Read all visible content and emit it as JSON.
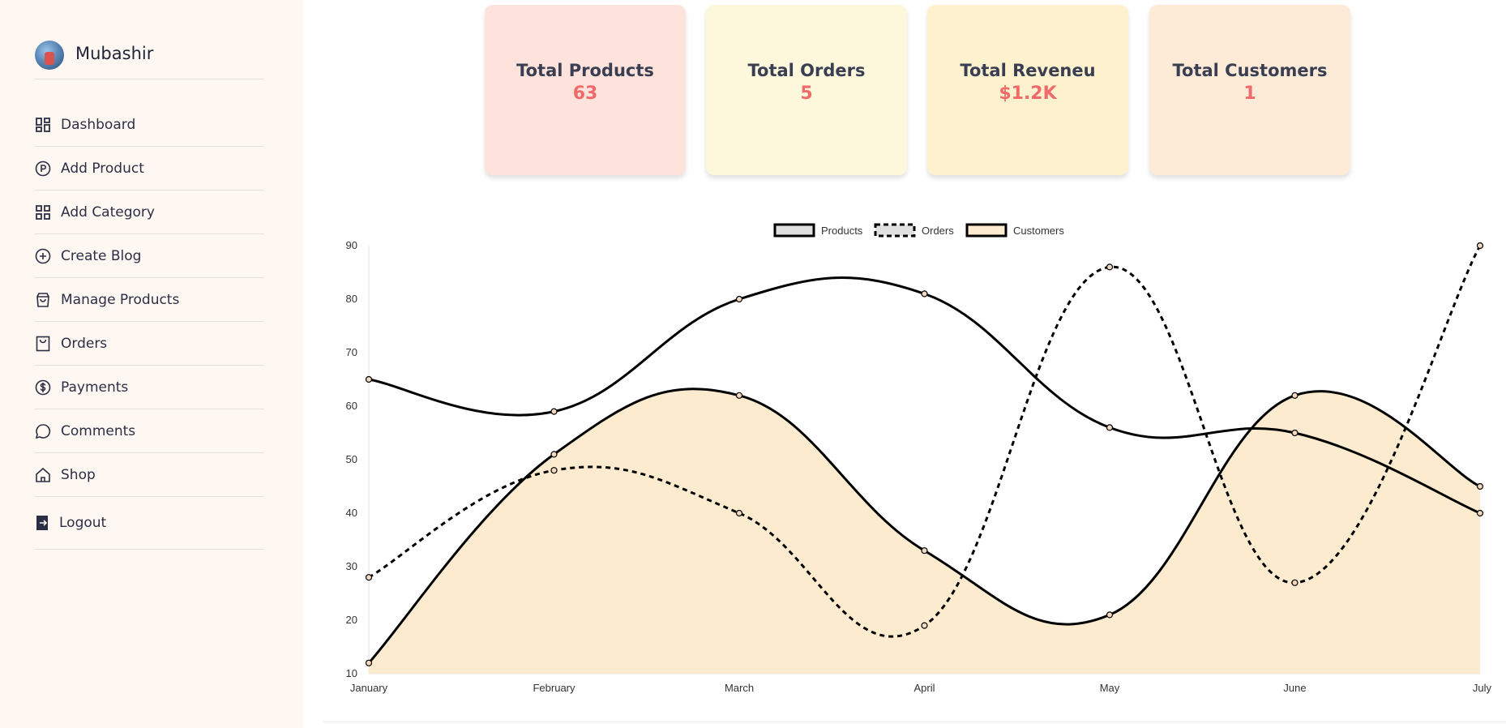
{
  "sidebar": {
    "user_name": "Mubashir",
    "items": [
      {
        "label": "Dashboard",
        "icon": "grid-icon"
      },
      {
        "label": "Add Product",
        "icon": "product-circle-icon"
      },
      {
        "label": "Add Category",
        "icon": "grid-icon"
      },
      {
        "label": "Create Blog",
        "icon": "plus-circle-icon"
      },
      {
        "label": "Manage Products",
        "icon": "bag-icon"
      },
      {
        "label": "Orders",
        "icon": "shopping-bag-icon"
      },
      {
        "label": "Payments",
        "icon": "dollar-circle-icon"
      },
      {
        "label": "Comments",
        "icon": "chat-bubble-icon"
      },
      {
        "label": "Shop",
        "icon": "home-icon"
      }
    ],
    "logout": {
      "label": "Logout",
      "icon": "logout-icon"
    }
  },
  "stats": [
    {
      "title": "Total Products",
      "value": "63",
      "bg": "#fde3dc"
    },
    {
      "title": "Total Orders",
      "value": "5",
      "bg": "#fdf8dc"
    },
    {
      "title": "Total Reveneu",
      "value": "$1.2K",
      "bg": "#fef1cd"
    },
    {
      "title": "Total Customers",
      "value": "1",
      "bg": "#fdebd7"
    }
  ],
  "colors": {
    "value_text": "#f06a6a",
    "customers_fill": "#fdebd0",
    "products_legend_fill": "#e0e0e0",
    "line": "#000000"
  },
  "chart_data": {
    "type": "line",
    "categories": [
      "January",
      "February",
      "March",
      "April",
      "May",
      "June",
      "July"
    ],
    "ylim": [
      10,
      90
    ],
    "yticks": [
      10,
      20,
      30,
      40,
      50,
      60,
      70,
      80,
      90
    ],
    "legend_position": "top-center",
    "grid": false,
    "series": [
      {
        "name": "Products",
        "values": [
          65,
          59,
          80,
          81,
          56,
          55,
          40
        ],
        "style": "solid",
        "fill": false
      },
      {
        "name": "Orders",
        "values": [
          28,
          48,
          40,
          19,
          86,
          27,
          90
        ],
        "style": "dashed",
        "fill": false
      },
      {
        "name": "Customers",
        "values": [
          12,
          51,
          62,
          33,
          21,
          62,
          45
        ],
        "style": "solid",
        "fill": true
      }
    ]
  }
}
